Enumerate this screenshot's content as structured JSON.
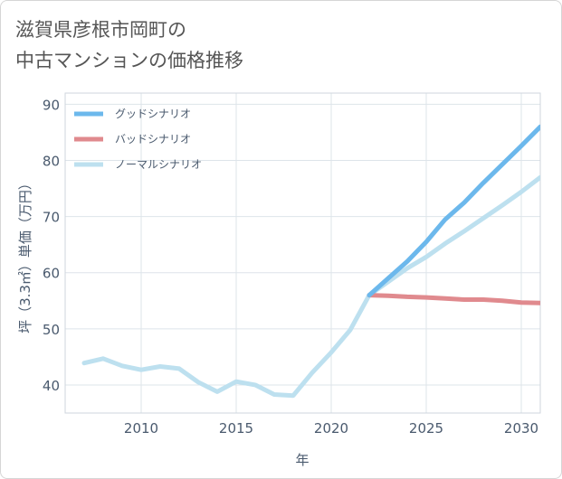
{
  "title_lines": [
    "滋賀県彦根市岡町の",
    "中古マンションの価格推移"
  ],
  "chart_data": {
    "type": "line",
    "title": "滋賀県彦根市岡町の中古マンションの価格推移",
    "xlabel": "年",
    "ylabel": "坪（3.3㎡）単価（万円）",
    "xlim": [
      2006,
      2031
    ],
    "ylim": [
      35,
      92
    ],
    "xticks": [
      2010,
      2015,
      2020,
      2025,
      2030
    ],
    "yticks": [
      40,
      50,
      60,
      70,
      80,
      90
    ],
    "grid": true,
    "legend_position": "top-left",
    "series": [
      {
        "name": "グッドシナリオ",
        "color": "#6cb8ec",
        "x": [
          2022,
          2023,
          2024,
          2025,
          2026,
          2027,
          2028,
          2029,
          2030,
          2031
        ],
        "y": [
          56.0,
          59.0,
          62.0,
          65.5,
          69.5,
          72.5,
          76.0,
          79.3,
          82.6,
          86.0
        ]
      },
      {
        "name": "バッドシナリオ",
        "color": "#e08a8e",
        "x": [
          2022,
          2023,
          2024,
          2025,
          2026,
          2027,
          2028,
          2029,
          2030,
          2031
        ],
        "y": [
          56.0,
          55.9,
          55.7,
          55.6,
          55.4,
          55.2,
          55.2,
          55.0,
          54.7,
          54.6
        ]
      },
      {
        "name": "ノーマルシナリオ",
        "color": "#bde0ef",
        "x": [
          2007,
          2008,
          2009,
          2010,
          2011,
          2012,
          2013,
          2014,
          2015,
          2016,
          2017,
          2018,
          2019,
          2020,
          2021,
          2022,
          2023,
          2024,
          2025,
          2026,
          2027,
          2028,
          2029,
          2030,
          2031
        ],
        "y": [
          43.9,
          44.7,
          43.4,
          42.7,
          43.3,
          42.9,
          40.5,
          38.8,
          40.6,
          40.0,
          38.3,
          38.1,
          42.2,
          45.8,
          49.8,
          56.0,
          58.4,
          60.8,
          62.8,
          65.2,
          67.4,
          69.7,
          72.0,
          74.4,
          77.0
        ]
      }
    ]
  }
}
